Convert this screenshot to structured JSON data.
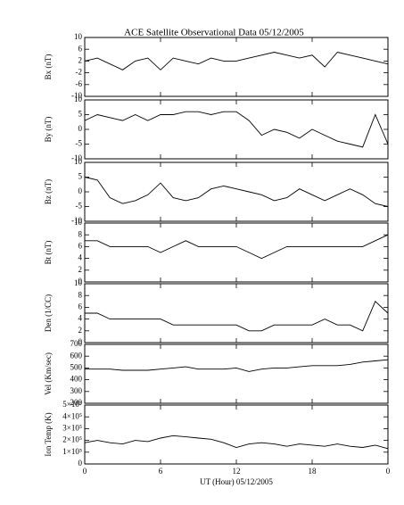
{
  "title": "ACE Satellite Observational Data   05/12/2005",
  "x_axis": {
    "label": "UT (Hour)   05/12/2005",
    "lim": [
      0,
      24
    ],
    "ticks": [
      0,
      6,
      12,
      18,
      {
        "value": 24,
        "label": "0"
      }
    ]
  },
  "x": [
    0,
    1,
    2,
    3,
    4,
    5,
    6,
    7,
    8,
    9,
    10,
    11,
    12,
    13,
    14,
    15,
    16,
    17,
    18,
    19,
    20,
    21,
    22,
    23,
    24
  ],
  "chart_data": [
    {
      "type": "line",
      "ylabel": "Bx (nT)",
      "ylim": [
        -10,
        10
      ],
      "yticks": [
        10,
        6,
        2,
        -2,
        -6,
        -10
      ],
      "values": [
        2,
        3,
        1,
        -1,
        2,
        3,
        -1,
        3,
        2,
        1,
        3,
        2,
        2,
        3,
        4,
        5,
        4,
        3,
        4,
        0,
        5,
        4,
        3,
        2,
        1
      ]
    },
    {
      "type": "line",
      "ylabel": "By (nT)",
      "ylim": [
        -10,
        10
      ],
      "yticks": [
        10,
        5,
        0,
        -5,
        -10
      ],
      "values": [
        3,
        5,
        4,
        3,
        5,
        3,
        5,
        5,
        6,
        6,
        5,
        6,
        6,
        3,
        -2,
        0,
        -1,
        -3,
        0,
        -2,
        -4,
        -5,
        -6,
        5,
        -5
      ]
    },
    {
      "type": "line",
      "ylabel": "Bz (nT)",
      "ylim": [
        -10,
        10
      ],
      "yticks": [
        10,
        5,
        0,
        -5,
        -10
      ],
      "values": [
        5,
        4,
        -2,
        -4,
        -3,
        -1,
        3,
        -2,
        -3,
        -2,
        1,
        2,
        1,
        0,
        -1,
        -3,
        -2,
        1,
        -1,
        -3,
        -1,
        1,
        -1,
        -4,
        -5
      ]
    },
    {
      "type": "line",
      "ylabel": "Bt (nT)",
      "ylim": [
        0,
        10
      ],
      "yticks": [
        10,
        8,
        6,
        4,
        2,
        0
      ],
      "values": [
        7,
        7,
        6,
        6,
        6,
        6,
        5,
        6,
        7,
        6,
        6,
        6,
        6,
        5,
        4,
        5,
        6,
        6,
        6,
        6,
        6,
        6,
        6,
        7,
        8
      ]
    },
    {
      "type": "line",
      "ylabel": "Den (1/CC)",
      "ylim": [
        0,
        10
      ],
      "yticks": [
        10,
        8,
        6,
        4,
        2,
        0
      ],
      "values": [
        5,
        5,
        4,
        4,
        4,
        4,
        4,
        3,
        3,
        3,
        3,
        3,
        3,
        2,
        2,
        3,
        3,
        3,
        3,
        4,
        3,
        3,
        2,
        7,
        5
      ]
    },
    {
      "type": "line",
      "ylabel": "Vel (Km/sec)",
      "ylim": [
        200,
        700
      ],
      "yticks": [
        700,
        600,
        500,
        400,
        300,
        200
      ],
      "values": [
        490,
        490,
        490,
        480,
        480,
        480,
        490,
        500,
        510,
        490,
        490,
        490,
        500,
        470,
        490,
        500,
        500,
        510,
        520,
        520,
        520,
        530,
        550,
        560,
        570
      ]
    },
    {
      "type": "line",
      "ylabel": "Ion Temp (K)",
      "ylim": [
        0,
        500000
      ],
      "yticks": [
        {
          "value": 500000,
          "label": "5×10⁵"
        },
        {
          "value": 400000,
          "label": "4×10⁵"
        },
        {
          "value": 300000,
          "label": "3×10⁵"
        },
        {
          "value": 200000,
          "label": "2×10⁵"
        },
        {
          "value": 100000,
          "label": "1×10⁵"
        },
        0
      ],
      "values": [
        180000,
        200000,
        180000,
        170000,
        200000,
        190000,
        220000,
        240000,
        230000,
        220000,
        210000,
        180000,
        140000,
        170000,
        180000,
        170000,
        150000,
        170000,
        160000,
        150000,
        170000,
        150000,
        140000,
        160000,
        130000
      ]
    }
  ]
}
